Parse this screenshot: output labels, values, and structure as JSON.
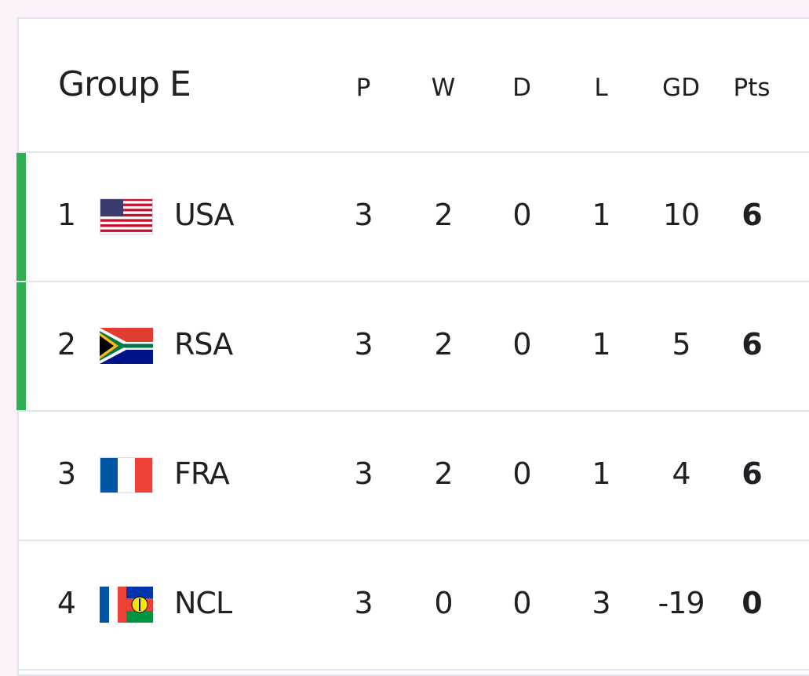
{
  "table": {
    "title": "Group E",
    "columns": [
      "P",
      "W",
      "D",
      "L",
      "GD",
      "Pts"
    ],
    "rows": [
      {
        "rank": 1,
        "team": "USA",
        "stats": [
          3,
          2,
          0,
          1,
          10,
          6
        ]
      },
      {
        "rank": 2,
        "team": "RSA",
        "stats": [
          3,
          2,
          0,
          1,
          5,
          6
        ]
      },
      {
        "rank": 3,
        "team": "FRA",
        "stats": [
          3,
          2,
          0,
          1,
          4,
          6
        ]
      },
      {
        "rank": 4,
        "team": "NCL",
        "stats": [
          3,
          0,
          0,
          3,
          -19,
          0
        ]
      }
    ]
  }
}
